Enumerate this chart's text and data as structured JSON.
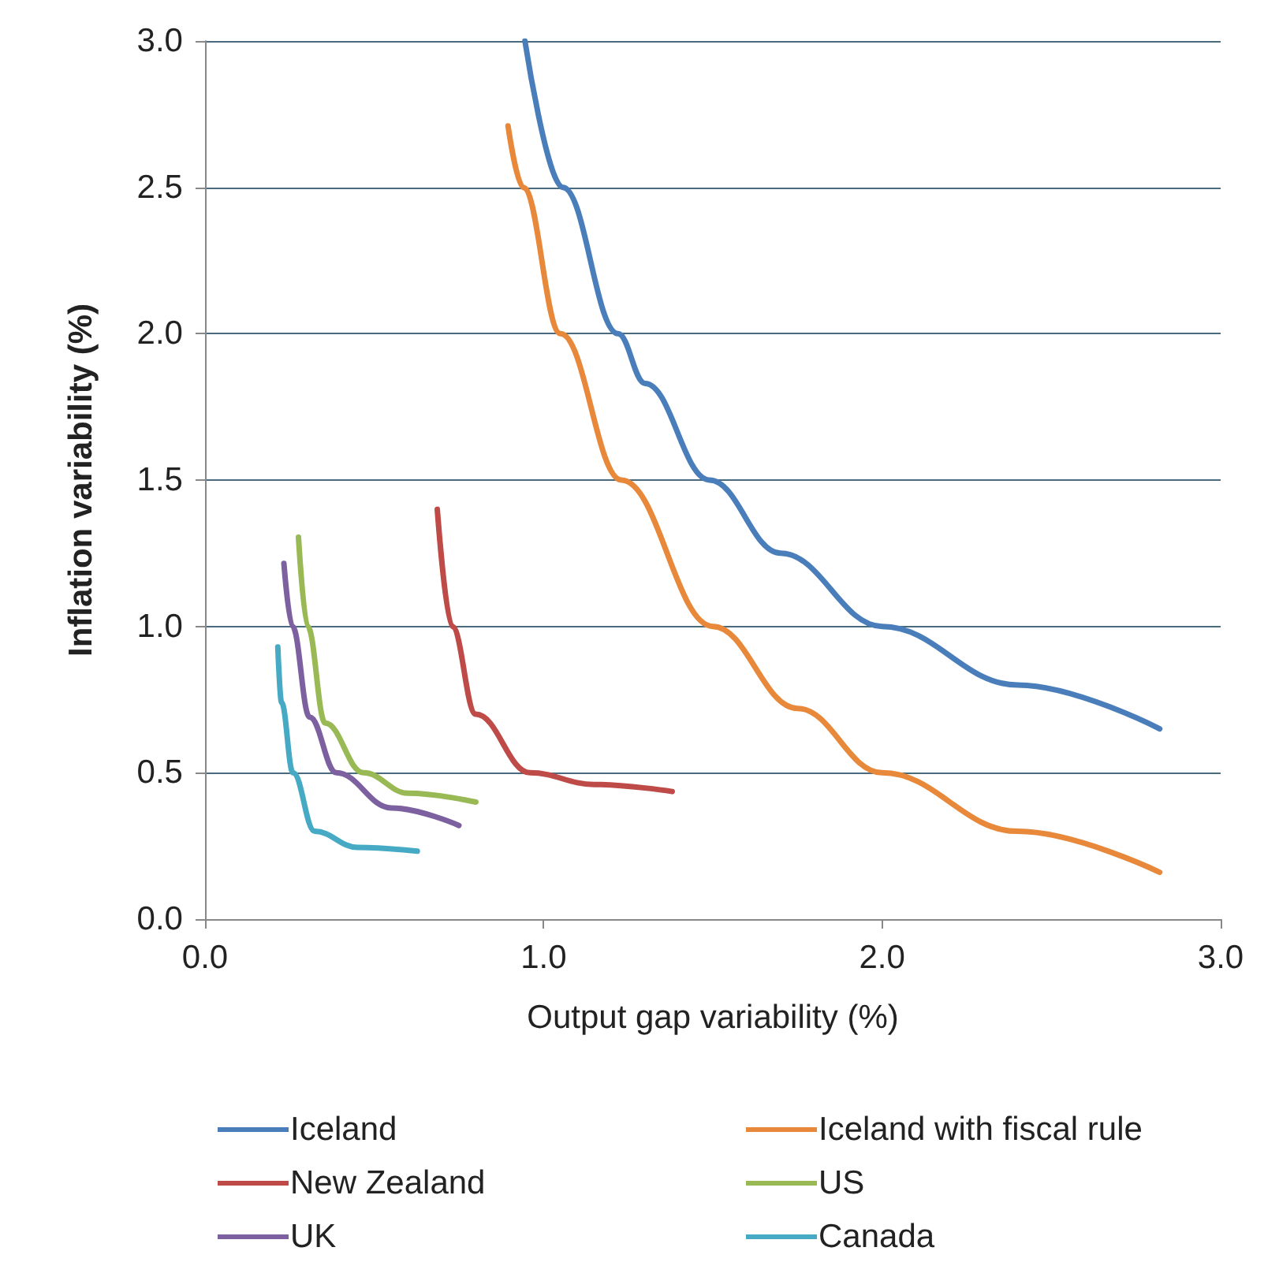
{
  "chart_data": {
    "type": "line",
    "xlabel": "Output gap variability (%)",
    "ylabel": "Inflation variability (%)",
    "xlim": [
      0,
      3
    ],
    "ylim": [
      0,
      3
    ],
    "xticks": [
      {
        "value": 0,
        "label": "0.0"
      },
      {
        "value": 1,
        "label": "1.0"
      },
      {
        "value": 2,
        "label": "2.0"
      },
      {
        "value": 3,
        "label": "3.0"
      }
    ],
    "yticks": [
      {
        "value": 0,
        "label": "0.0"
      },
      0.5,
      {
        "value": 1,
        "label": "1.0"
      },
      1.5,
      {
        "value": 2,
        "label": "2.0"
      },
      2.5,
      {
        "value": 3,
        "label": "3.0"
      }
    ],
    "grid": "y",
    "legend": "bottom",
    "marker": "none",
    "line_style": "solid",
    "series": [
      {
        "name": "Iceland",
        "color": "#4a7ebb",
        "x": [
          0.945,
          1.057,
          1.22,
          1.3,
          1.49,
          1.7,
          2.0,
          2.4,
          2.82
        ],
        "values": [
          3.0,
          2.5,
          2.0,
          1.83,
          1.5,
          1.25,
          1.0,
          0.8,
          0.65
        ]
      },
      {
        "name": "Iceland with fiscal rule",
        "color": "#e8883a",
        "x": [
          0.895,
          0.94,
          1.05,
          1.23,
          1.5,
          1.75,
          2.0,
          2.4,
          2.82
        ],
        "values": [
          2.71,
          2.5,
          2.0,
          1.5,
          1.0,
          0.72,
          0.5,
          0.3,
          0.16
        ]
      },
      {
        "name": "New Zealand",
        "color": "#be4b48",
        "x": [
          0.686,
          0.73,
          0.8,
          0.96,
          1.15,
          1.38
        ],
        "values": [
          1.4,
          1.0,
          0.7,
          0.5,
          0.46,
          0.436
        ]
      },
      {
        "name": "US",
        "color": "#98b954",
        "x": [
          0.276,
          0.303,
          0.355,
          0.468,
          0.6,
          0.8
        ],
        "values": [
          1.305,
          1.0,
          0.67,
          0.5,
          0.43,
          0.4
        ]
      },
      {
        "name": "UK",
        "color": "#7d60a0",
        "x": [
          0.233,
          0.258,
          0.309,
          0.388,
          0.55,
          0.75
        ],
        "values": [
          1.215,
          1.0,
          0.69,
          0.5,
          0.38,
          0.32
        ]
      },
      {
        "name": "Canada",
        "color": "#46aac5",
        "x": [
          0.215,
          0.226,
          0.26,
          0.324,
          0.45,
          0.627
        ],
        "values": [
          0.93,
          0.74,
          0.5,
          0.3,
          0.245,
          0.232
        ]
      }
    ]
  }
}
